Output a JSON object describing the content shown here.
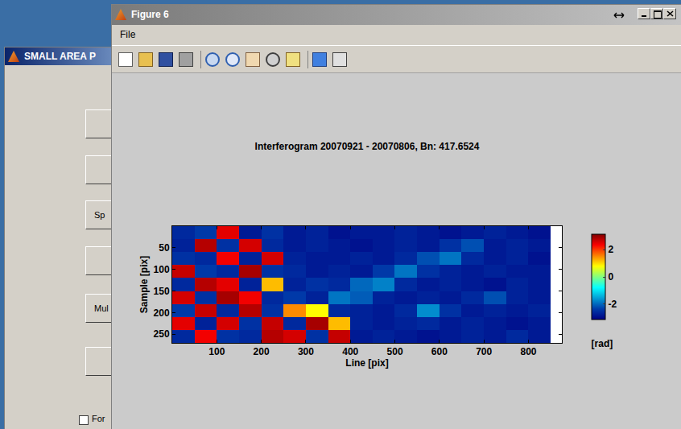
{
  "background_window": {
    "title": "SMALL AREA P",
    "buttons": [
      "",
      "",
      "Sp",
      "",
      "Mul",
      ""
    ],
    "checkbox": "For"
  },
  "figure_window": {
    "title": "Figure 6",
    "menu": [
      "File"
    ]
  },
  "chart_data": {
    "type": "heatmap",
    "title": "Interferogram 20070921 - 20070806, Bn: 417.6524",
    "x_label": "Line [pix]",
    "y_label": "Sample [pix]",
    "x": [
      25,
      75,
      125,
      175,
      225,
      275,
      325,
      375,
      425,
      475,
      525,
      575,
      625,
      675,
      725,
      775,
      825
    ],
    "y": [
      15,
      45,
      75,
      105,
      135,
      165,
      195,
      225,
      255
    ],
    "cells": [
      [
        -2.6,
        -2.4,
        2.5,
        -2.8,
        -2.5,
        -2.8,
        -2.7,
        -2.9,
        -2.8,
        -2.8,
        -2.7,
        -2.8,
        -2.9,
        -2.8,
        -2.7,
        -2.8,
        -2.9
      ],
      [
        -2.7,
        2.8,
        -2.5,
        2.6,
        -2.6,
        -2.8,
        -2.7,
        -2.8,
        -2.9,
        -2.8,
        -2.7,
        -2.8,
        -2.5,
        -2.2,
        -2.8,
        -2.7,
        -2.8
      ],
      [
        -2.5,
        -2.6,
        2.4,
        -2.7,
        2.6,
        -2.7,
        -2.8,
        -2.8,
        -2.7,
        -2.8,
        -2.6,
        -2.2,
        -1.9,
        -2.6,
        -2.8,
        -2.7,
        -2.9
      ],
      [
        2.7,
        -2.4,
        -2.6,
        2.9,
        -2.5,
        -2.6,
        -2.8,
        -2.7,
        -2.8,
        -2.4,
        -1.9,
        -2.5,
        -2.7,
        -2.8,
        -2.7,
        -2.8,
        -2.8
      ],
      [
        -2.6,
        2.8,
        2.5,
        -2.7,
        1.2,
        -2.7,
        -2.5,
        -2.6,
        -2.0,
        -1.8,
        -2.6,
        -2.8,
        -2.7,
        -2.8,
        -2.9,
        -2.7,
        -2.8
      ],
      [
        2.6,
        -2.5,
        2.9,
        2.4,
        -2.6,
        -2.4,
        -2.7,
        -1.9,
        -2.1,
        -2.7,
        -2.8,
        -2.7,
        -2.8,
        -2.6,
        -2.2,
        -2.7,
        -2.8
      ],
      [
        -2.4,
        2.7,
        -2.6,
        2.8,
        -2.5,
        1.5,
        0.8,
        -2.6,
        -2.7,
        -2.8,
        -2.6,
        -1.7,
        -2.5,
        -2.8,
        -2.7,
        -2.8,
        -2.7
      ],
      [
        2.5,
        -2.7,
        2.6,
        -2.5,
        2.7,
        -2.6,
        2.9,
        1.2,
        -2.7,
        -2.8,
        -2.7,
        -2.6,
        -2.8,
        -2.7,
        -2.8,
        -2.9,
        -2.8
      ],
      [
        -2.6,
        2.4,
        -2.5,
        -2.6,
        2.8,
        2.6,
        -2.5,
        2.7,
        -2.8,
        -2.7,
        -2.8,
        -2.9,
        -2.8,
        -2.7,
        -2.8,
        -2.6,
        -2.8
      ]
    ],
    "xlim": [
      0,
      875
    ],
    "ylim": [
      0,
      270
    ],
    "xticks": [
      100,
      200,
      300,
      400,
      500,
      600,
      700,
      800
    ],
    "yticks": [
      50,
      100,
      150,
      200,
      250
    ],
    "color_range": [
      -3.1416,
      3.1416
    ],
    "color_ticks": [
      -2,
      0,
      2
    ],
    "colorbar_label": "[rad]"
  }
}
